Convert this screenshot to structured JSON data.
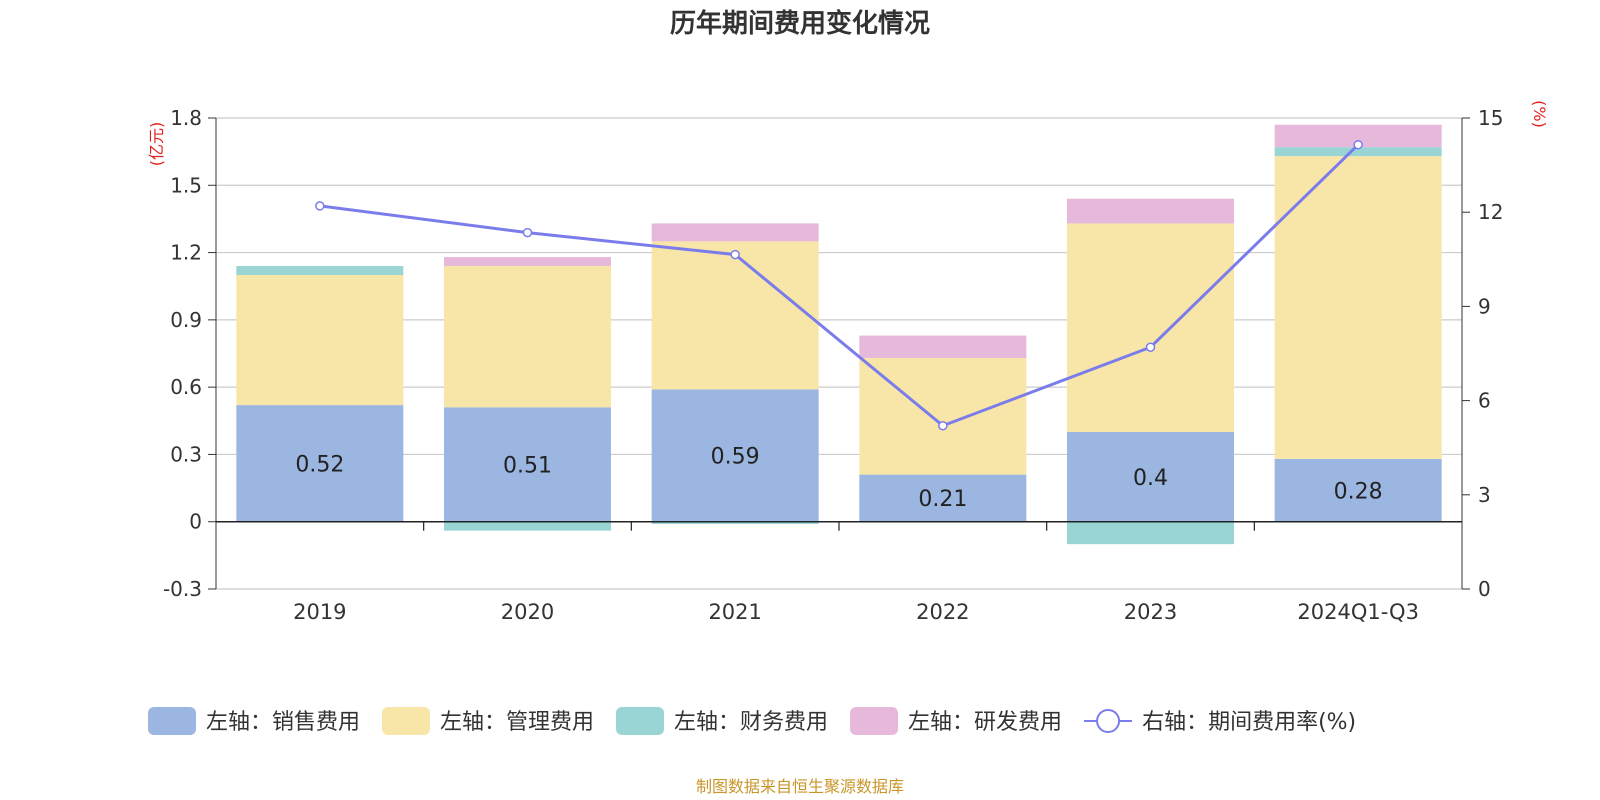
{
  "title": "历年期间费用变化情况",
  "source": "制图数据来自恒生聚源数据库",
  "chart_data": {
    "type": "bar",
    "stacked": true,
    "categories": [
      "2019",
      "2020",
      "2021",
      "2022",
      "2023",
      "2024Q1-Q3"
    ],
    "y_left": {
      "unit": "(亿元)",
      "min": -0.3,
      "max": 1.8,
      "ticks": [
        "1.8",
        "1.5",
        "1.2",
        "0.9",
        "0.6",
        "0.3",
        "0",
        "-0.3"
      ]
    },
    "y_right": {
      "unit": "(%)",
      "min": 0,
      "max": 15,
      "ticks": [
        "15",
        "12",
        "9",
        "6",
        "3",
        "0"
      ]
    },
    "series": [
      {
        "name": "左轴：销售费用",
        "axis": "left",
        "color": "#9bb6e0",
        "values": [
          0.52,
          0.51,
          0.59,
          0.21,
          0.4,
          0.28
        ],
        "labels": [
          "0.52",
          "0.51",
          "0.59",
          "0.21",
          "0.4",
          "0.28"
        ]
      },
      {
        "name": "左轴：管理费用",
        "axis": "left",
        "color": "#f8e6a8",
        "values": [
          0.58,
          0.63,
          0.66,
          0.52,
          0.93,
          1.35
        ]
      },
      {
        "name": "左轴：财务费用",
        "axis": "left",
        "color": "#99d5d4",
        "values": [
          0.04,
          -0.04,
          -0.01,
          0.0,
          -0.1,
          0.04
        ]
      },
      {
        "name": "左轴：研发费用",
        "axis": "left",
        "color": "#e6b9db",
        "values": [
          0.0,
          0.04,
          0.08,
          0.1,
          0.11,
          0.1
        ]
      }
    ],
    "line": {
      "name": "右轴：期间费用率(%)",
      "axis": "right",
      "color": "#7b7cec",
      "values": [
        12.2,
        11.35,
        10.65,
        5.2,
        7.7,
        14.15
      ]
    },
    "legend_position": "bottom"
  }
}
